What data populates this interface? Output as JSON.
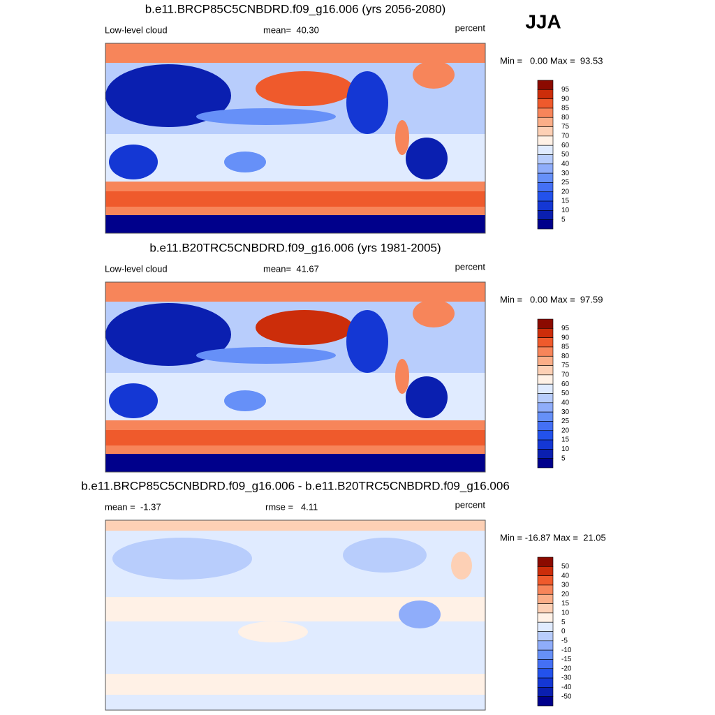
{
  "header": {
    "season": "JJA"
  },
  "palette": [
    "#00008b",
    "#0a1fb0",
    "#1437d4",
    "#2352ec",
    "#4470f5",
    "#6690f8",
    "#8fadfa",
    "#b8cdfc",
    "#e0ebff",
    "#fff1e6",
    "#fdd0b5",
    "#fbae88",
    "#f7855a",
    "#ef5a2c",
    "#cc2d0a",
    "#8b0a00"
  ],
  "panels": [
    {
      "title": "b.e11.BRCP85C5CNBDRD.f09_g16.006 (yrs 2056-2080)",
      "left_label": "Low-level cloud",
      "center_label": "mean=  40.30",
      "units": "percent",
      "range_label": "Min =   0.00 Max =  93.53",
      "colorbar_labels": [
        95,
        90,
        85,
        80,
        75,
        70,
        60,
        50,
        40,
        30,
        25,
        20,
        15,
        10,
        5
      ]
    },
    {
      "title": "b.e11.B20TRC5CNBDRD.f09_g16.006 (yrs 1981-2005)",
      "left_label": "Low-level cloud",
      "center_label": "mean=  41.67",
      "units": "percent",
      "range_label": "Min =   0.00 Max =  97.59",
      "colorbar_labels": [
        95,
        90,
        85,
        80,
        75,
        70,
        60,
        50,
        40,
        30,
        25,
        20,
        15,
        10,
        5
      ]
    },
    {
      "title": "b.e11.BRCP85C5CNBDRD.f09_g16.006 - b.e11.B20TRC5CNBDRD.f09_g16.006",
      "left_label": "mean =  -1.37",
      "center_label": "rmse =   4.11",
      "units": "percent",
      "range_label": "Min = -16.87 Max =  21.05",
      "colorbar_labels": [
        50,
        40,
        30,
        20,
        15,
        10,
        5,
        0,
        -5,
        -10,
        -15,
        -20,
        -30,
        -40,
        -50
      ]
    }
  ]
}
